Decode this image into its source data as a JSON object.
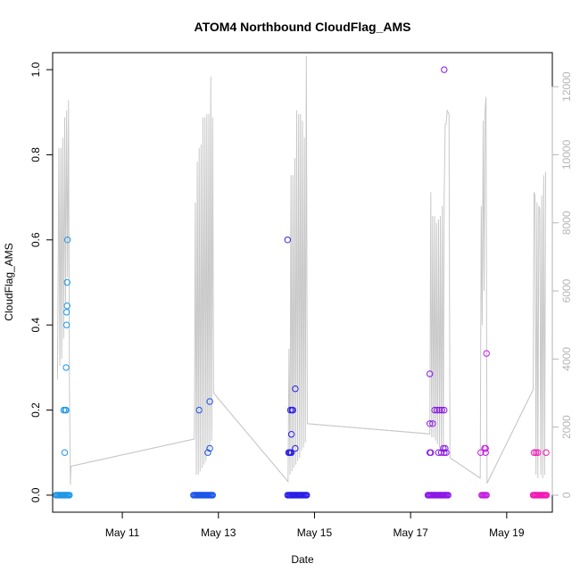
{
  "chart_data": {
    "type": "scatter",
    "title": "ATOM4 Northbound CloudFlag_AMS",
    "xlabel": "Date",
    "ylabel": "CloudFlag_AMS",
    "xlim": [
      9.55,
      19.95
    ],
    "ylim": [
      -0.04,
      1.04
    ],
    "y2lim": [
      -500,
      13000
    ],
    "x_ticks": [
      {
        "value": 11,
        "label": "May 11"
      },
      {
        "value": 13,
        "label": "May 13"
      },
      {
        "value": 15,
        "label": "May 15"
      },
      {
        "value": 17,
        "label": "May 17"
      },
      {
        "value": 19,
        "label": "May 19"
      }
    ],
    "y_ticks": [
      {
        "value": 0.0,
        "label": "0.0"
      },
      {
        "value": 0.2,
        "label": "0.2"
      },
      {
        "value": 0.4,
        "label": "0.4"
      },
      {
        "value": 0.6,
        "label": "0.6"
      },
      {
        "value": 0.8,
        "label": "0.8"
      },
      {
        "value": 1.0,
        "label": "1.0"
      }
    ],
    "y2_ticks": [
      {
        "value": 0,
        "label": "0"
      },
      {
        "value": 2000,
        "label": "2000"
      },
      {
        "value": 4000,
        "label": "4000"
      },
      {
        "value": 6000,
        "label": "6000"
      },
      {
        "value": 8000,
        "label": "8000"
      },
      {
        "value": 10000,
        "label": "10000"
      },
      {
        "value": 12000,
        "label": "12000"
      }
    ],
    "line_color": "#c8c8c8",
    "line_series": [
      [
        9.65,
        3400
      ],
      [
        9.68,
        10200
      ],
      [
        9.7,
        3800
      ],
      [
        9.72,
        10200
      ],
      [
        9.74,
        4000
      ],
      [
        9.76,
        10500
      ],
      [
        9.78,
        4600
      ],
      [
        9.8,
        11100
      ],
      [
        9.82,
        5600
      ],
      [
        9.84,
        11300
      ],
      [
        9.86,
        6400
      ],
      [
        9.88,
        11600
      ],
      [
        9.9,
        3300
      ],
      [
        9.92,
        300
      ],
      [
        9.93,
        850
      ],
      [
        12.5,
        1650
      ],
      [
        12.52,
        8600
      ],
      [
        12.54,
        600
      ],
      [
        12.56,
        9800
      ],
      [
        12.58,
        600
      ],
      [
        12.6,
        10200
      ],
      [
        12.62,
        700
      ],
      [
        12.64,
        10300
      ],
      [
        12.66,
        800
      ],
      [
        12.68,
        11100
      ],
      [
        12.7,
        900
      ],
      [
        12.72,
        11100
      ],
      [
        12.74,
        1000
      ],
      [
        12.76,
        11200
      ],
      [
        12.78,
        1200
      ],
      [
        12.8,
        11200
      ],
      [
        12.82,
        1300
      ],
      [
        12.84,
        12300
      ],
      [
        12.86,
        1600
      ],
      [
        12.88,
        11100
      ],
      [
        12.9,
        3000
      ],
      [
        14.45,
        400
      ],
      [
        14.47,
        4300
      ],
      [
        14.49,
        600
      ],
      [
        14.51,
        9400
      ],
      [
        14.53,
        700
      ],
      [
        14.55,
        9400
      ],
      [
        14.57,
        800
      ],
      [
        14.59,
        9900
      ],
      [
        14.61,
        900
      ],
      [
        14.63,
        11300
      ],
      [
        14.65,
        1000
      ],
      [
        14.67,
        11200
      ],
      [
        14.69,
        1100
      ],
      [
        14.71,
        11200
      ],
      [
        14.73,
        1300
      ],
      [
        14.75,
        11000
      ],
      [
        14.77,
        1400
      ],
      [
        14.79,
        10500
      ],
      [
        14.81,
        1550
      ],
      [
        14.83,
        12900
      ],
      [
        14.85,
        2100
      ],
      [
        17.4,
        1800
      ],
      [
        17.42,
        8900
      ],
      [
        17.44,
        1700
      ],
      [
        17.46,
        8200
      ],
      [
        17.48,
        1700
      ],
      [
        17.5,
        8200
      ],
      [
        17.52,
        1600
      ],
      [
        17.54,
        8000
      ],
      [
        17.56,
        1500
      ],
      [
        17.58,
        8100
      ],
      [
        17.6,
        1400
      ],
      [
        17.62,
        8200
      ],
      [
        17.64,
        1300
      ],
      [
        17.66,
        8500
      ],
      [
        17.68,
        1300
      ],
      [
        17.7,
        8800
      ],
      [
        17.72,
        10900
      ],
      [
        17.74,
        10900
      ],
      [
        17.76,
        11300
      ],
      [
        17.8,
        11200
      ],
      [
        17.82,
        1100
      ],
      [
        18.45,
        500
      ],
      [
        18.47,
        8500
      ],
      [
        18.49,
        5000
      ],
      [
        18.51,
        11000
      ],
      [
        18.53,
        6000
      ],
      [
        18.55,
        11300
      ],
      [
        18.57,
        11700
      ],
      [
        18.59,
        350
      ],
      [
        19.55,
        3100
      ],
      [
        19.57,
        8900
      ],
      [
        19.59,
        8800
      ],
      [
        19.61,
        600
      ],
      [
        19.63,
        8600
      ],
      [
        19.65,
        500
      ],
      [
        19.67,
        8500
      ],
      [
        19.69,
        8400
      ],
      [
        19.71,
        600
      ],
      [
        19.73,
        8800
      ],
      [
        19.75,
        500
      ],
      [
        19.77,
        9400
      ],
      [
        19.79,
        600
      ],
      [
        19.81,
        9500
      ]
    ],
    "line_gaps": [
      [
        [
          9.93,
          850
        ],
        [
          12.5,
          1650
        ]
      ],
      [
        [
          12.9,
          3000
        ],
        [
          14.45,
          400
        ]
      ],
      [
        [
          14.85,
          2100
        ],
        [
          17.4,
          1800
        ]
      ],
      [
        [
          17.82,
          1100
        ],
        [
          18.45,
          500
        ]
      ],
      [
        [
          18.59,
          350
        ],
        [
          19.55,
          3100
        ]
      ]
    ],
    "series": [
      {
        "color": "#1f96e6",
        "points": [
          [
            9.62,
            0
          ],
          [
            9.64,
            0
          ],
          [
            9.66,
            0
          ],
          [
            9.68,
            0
          ],
          [
            9.7,
            0
          ],
          [
            9.72,
            0
          ],
          [
            9.74,
            0
          ],
          [
            9.76,
            0
          ],
          [
            9.78,
            0
          ],
          [
            9.8,
            0
          ],
          [
            9.82,
            0
          ],
          [
            9.84,
            0
          ],
          [
            9.86,
            0
          ],
          [
            9.88,
            0
          ],
          [
            9.9,
            0
          ],
          [
            9.78,
            0.2
          ],
          [
            9.81,
            0.2
          ],
          [
            9.83,
            0.2
          ],
          [
            9.8,
            0.1
          ],
          [
            9.83,
            0.3
          ],
          [
            9.84,
            0.4
          ],
          [
            9.84,
            0.43
          ],
          [
            9.85,
            0.445
          ],
          [
            9.85,
            0.5
          ],
          [
            9.86,
            0.6
          ]
        ]
      },
      {
        "color": "#1b55e8",
        "points": [
          [
            12.48,
            0
          ],
          [
            12.5,
            0
          ],
          [
            12.52,
            0
          ],
          [
            12.54,
            0
          ],
          [
            12.56,
            0
          ],
          [
            12.58,
            0
          ],
          [
            12.6,
            0
          ],
          [
            12.62,
            0
          ],
          [
            12.64,
            0
          ],
          [
            12.66,
            0
          ],
          [
            12.68,
            0
          ],
          [
            12.7,
            0
          ],
          [
            12.72,
            0
          ],
          [
            12.74,
            0
          ],
          [
            12.76,
            0
          ],
          [
            12.78,
            0
          ],
          [
            12.8,
            0
          ],
          [
            12.82,
            0
          ],
          [
            12.84,
            0
          ],
          [
            12.86,
            0
          ],
          [
            12.88,
            0
          ],
          [
            12.6,
            0.2
          ],
          [
            12.78,
            0.1
          ],
          [
            12.82,
            0.11
          ],
          [
            12.82,
            0.22
          ]
        ]
      },
      {
        "color": "#2b1ee6",
        "points": [
          [
            14.44,
            0
          ],
          [
            14.46,
            0
          ],
          [
            14.48,
            0
          ],
          [
            14.5,
            0
          ],
          [
            14.52,
            0
          ],
          [
            14.54,
            0
          ],
          [
            14.56,
            0
          ],
          [
            14.58,
            0
          ],
          [
            14.6,
            0
          ],
          [
            14.62,
            0
          ],
          [
            14.64,
            0
          ],
          [
            14.66,
            0
          ],
          [
            14.68,
            0
          ],
          [
            14.7,
            0
          ],
          [
            14.72,
            0
          ],
          [
            14.74,
            0
          ],
          [
            14.76,
            0
          ],
          [
            14.78,
            0
          ],
          [
            14.8,
            0
          ],
          [
            14.82,
            0
          ],
          [
            14.84,
            0
          ],
          [
            14.44,
            0.6
          ],
          [
            14.46,
            0.1
          ],
          [
            14.48,
            0.1
          ],
          [
            14.5,
            0.1
          ],
          [
            14.52,
            0.1
          ],
          [
            14.5,
            0.2
          ],
          [
            14.53,
            0.2
          ],
          [
            14.55,
            0.2
          ],
          [
            14.52,
            0.143
          ],
          [
            14.6,
            0.11
          ],
          [
            14.6,
            0.25
          ]
        ]
      },
      {
        "color": "#8a18e6",
        "points": [
          [
            17.36,
            0
          ],
          [
            17.38,
            0
          ],
          [
            17.4,
            0
          ],
          [
            17.42,
            0
          ],
          [
            17.44,
            0
          ],
          [
            17.46,
            0
          ],
          [
            17.48,
            0
          ],
          [
            17.5,
            0
          ],
          [
            17.52,
            0
          ],
          [
            17.54,
            0
          ],
          [
            17.56,
            0
          ],
          [
            17.58,
            0
          ],
          [
            17.6,
            0
          ],
          [
            17.62,
            0
          ],
          [
            17.64,
            0
          ],
          [
            17.66,
            0
          ],
          [
            17.68,
            0
          ],
          [
            17.7,
            0
          ],
          [
            17.72,
            0
          ],
          [
            17.74,
            0
          ],
          [
            17.76,
            0
          ],
          [
            17.78,
            0
          ],
          [
            17.4,
            0.285
          ],
          [
            17.4,
            0.168
          ],
          [
            17.46,
            0.168
          ],
          [
            17.4,
            0.1
          ],
          [
            17.42,
            0.1
          ],
          [
            17.5,
            0.2
          ],
          [
            17.55,
            0.2
          ],
          [
            17.6,
            0.2
          ],
          [
            17.65,
            0.2
          ],
          [
            17.7,
            0.2
          ],
          [
            17.58,
            0.1
          ],
          [
            17.64,
            0.1
          ],
          [
            17.7,
            0.1
          ],
          [
            17.74,
            0.1
          ],
          [
            17.68,
            0.11
          ],
          [
            17.72,
            0.11
          ],
          [
            17.7,
            1.0
          ]
        ]
      },
      {
        "color": "#c21ee0",
        "points": [
          [
            18.48,
            0
          ],
          [
            18.5,
            0
          ],
          [
            18.52,
            0
          ],
          [
            18.54,
            0
          ],
          [
            18.56,
            0
          ],
          [
            18.58,
            0
          ],
          [
            18.46,
            0.1
          ],
          [
            18.54,
            0.11
          ],
          [
            18.56,
            0.11
          ],
          [
            18.56,
            0.1
          ],
          [
            18.58,
            0.333
          ]
        ]
      },
      {
        "color": "#f01ab4",
        "points": [
          [
            19.55,
            0
          ],
          [
            19.57,
            0
          ],
          [
            19.59,
            0
          ],
          [
            19.61,
            0
          ],
          [
            19.63,
            0
          ],
          [
            19.65,
            0
          ],
          [
            19.67,
            0
          ],
          [
            19.69,
            0
          ],
          [
            19.71,
            0
          ],
          [
            19.73,
            0
          ],
          [
            19.75,
            0
          ],
          [
            19.77,
            0
          ],
          [
            19.79,
            0
          ],
          [
            19.81,
            0
          ],
          [
            19.83,
            0
          ],
          [
            19.57,
            0.1
          ],
          [
            19.61,
            0.1
          ],
          [
            19.65,
            0.1
          ],
          [
            19.82,
            0.1
          ]
        ]
      }
    ]
  }
}
